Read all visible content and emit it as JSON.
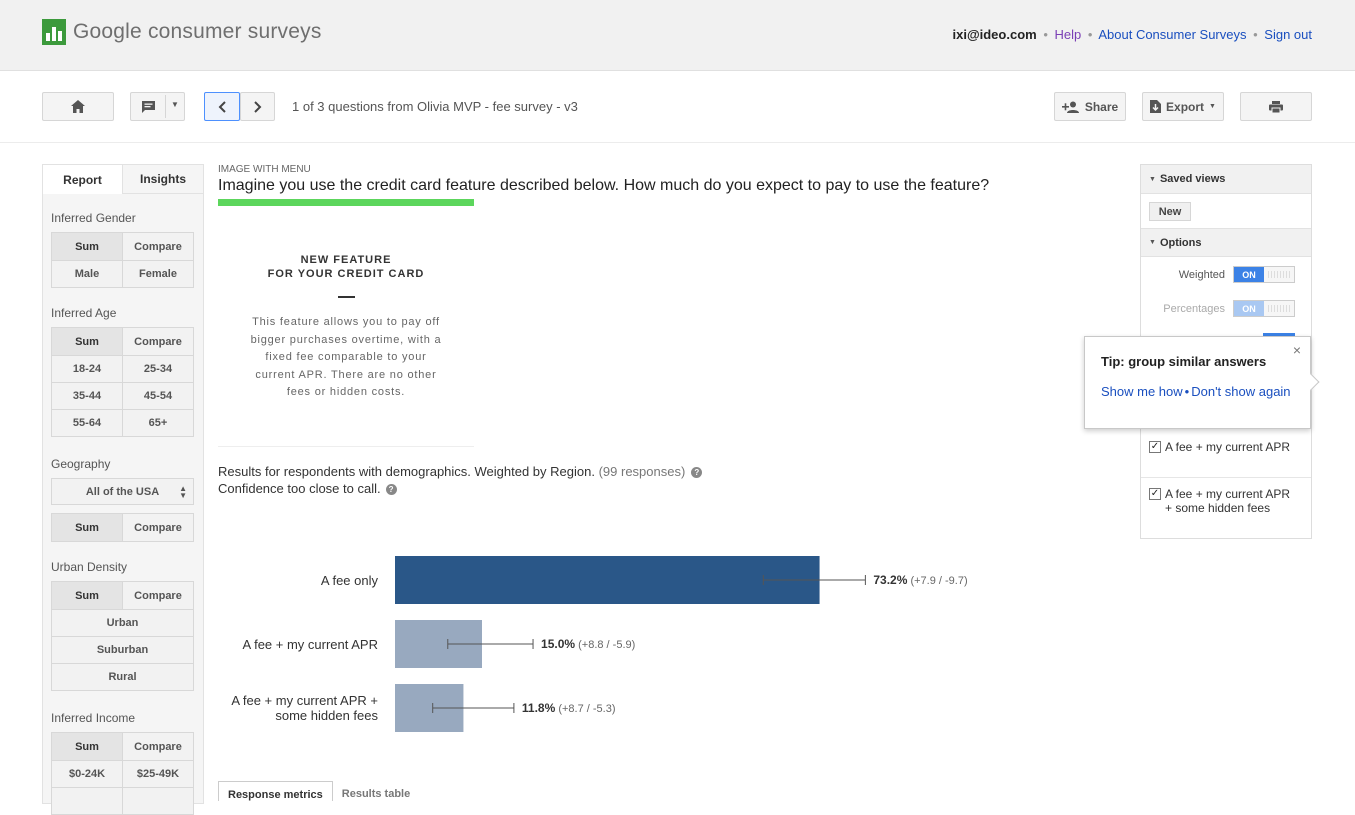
{
  "header": {
    "logo_text": "Google consumer surveys",
    "user_email": "ixi@ideo.com",
    "links": [
      "Help",
      "About Consumer Surveys",
      "Sign out"
    ]
  },
  "toolbar": {
    "question_counter": "1 of 3 questions from Olivia MVP - fee survey - v3",
    "share_label": "Share",
    "export_label": "Export"
  },
  "left_panel": {
    "tabs": [
      "Report",
      "Insights"
    ],
    "sections": {
      "gender": {
        "label": "Inferred Gender",
        "rows": [
          [
            "Sum",
            "Compare"
          ],
          [
            "Male",
            "Female"
          ]
        ]
      },
      "age": {
        "label": "Inferred Age",
        "rows": [
          [
            "Sum",
            "Compare"
          ],
          [
            "18-24",
            "25-34"
          ],
          [
            "35-44",
            "45-54"
          ],
          [
            "55-64",
            "65+"
          ]
        ]
      },
      "geography": {
        "label": "Geography",
        "select_value": "All of the USA",
        "rows": [
          [
            "Sum",
            "Compare"
          ]
        ]
      },
      "urban": {
        "label": "Urban Density",
        "rows": [
          [
            "Sum",
            "Compare"
          ],
          [
            "Urban"
          ],
          [
            "Suburban"
          ],
          [
            "Rural"
          ]
        ]
      },
      "income": {
        "label": "Inferred Income",
        "rows": [
          [
            "Sum",
            "Compare"
          ],
          [
            "$0-24K",
            "$25-49K"
          ]
        ]
      }
    }
  },
  "question": {
    "type_label": "IMAGE WITH MENU",
    "text": "Imagine you use the credit card feature described below. How much do you expect to pay to use the feature?",
    "feature_title_1": "NEW FEATURE",
    "feature_title_2": "FOR YOUR CREDIT CARD",
    "feature_body": "This feature allows you to pay off bigger purchases overtime, with a fixed fee comparable to your current APR. There are no other fees or hidden costs.",
    "results_line": "Results for respondents with demographics. Weighted by Region.",
    "responses": "(99 responses)",
    "confidence": "Confidence too close to call."
  },
  "chart_data": {
    "type": "bar",
    "orientation": "horizontal",
    "categories": [
      "A fee only",
      "A fee + my current APR",
      "A fee + my current APR + some hidden fees"
    ],
    "values": [
      73.2,
      15.0,
      11.8
    ],
    "value_labels": [
      "73.2%",
      "15.0%",
      "11.8%"
    ],
    "error_plus": [
      7.9,
      8.8,
      8.7
    ],
    "error_minus": [
      9.7,
      5.9,
      5.3
    ],
    "error_labels": [
      "(+7.9 / -9.7)",
      "(+8.8 / -5.9)",
      "(+8.7 / -5.3)"
    ],
    "xlim": [
      0,
      100
    ],
    "colors": [
      "#2a5788",
      "#98a9bf",
      "#98a9bf"
    ]
  },
  "right_panel": {
    "saved_views_label": "Saved views",
    "new_label": "New",
    "options_label": "Options",
    "options": [
      {
        "label": "Weighted",
        "state": "ON"
      },
      {
        "label": "Percentages",
        "state": "ON"
      }
    ],
    "answers": [
      "A fee + my current APR",
      "A fee + my current APR + some hidden fees"
    ]
  },
  "tip": {
    "title": "Tip: group similar answers",
    "link1": "Show me how",
    "link2": "Don't show again"
  },
  "bottom_tabs": [
    "Response metrics",
    "Results table"
  ]
}
